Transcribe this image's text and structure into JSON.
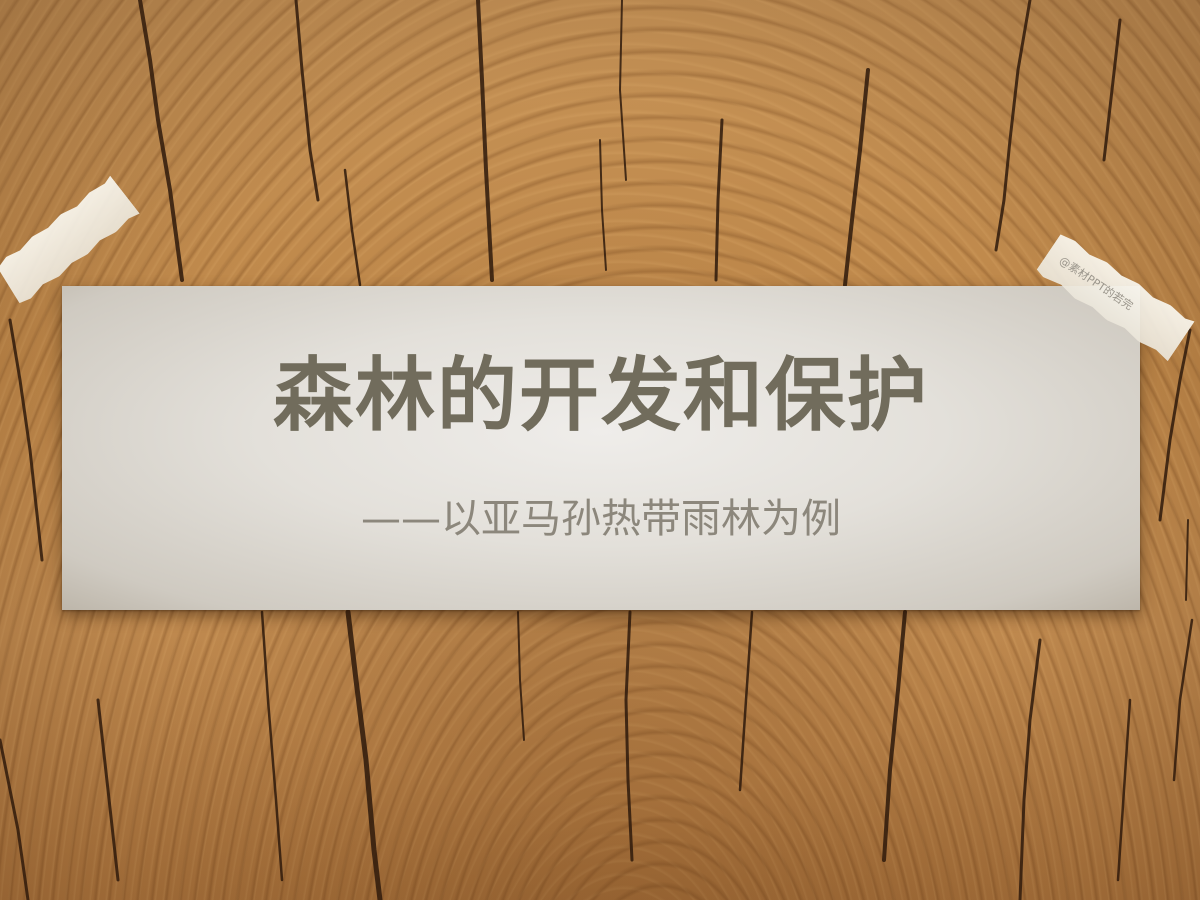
{
  "slide": {
    "title": "森林的开发和保护",
    "subtitle": "——以亚马孙热带雨林为例",
    "watermark": "@素材PPT的若完"
  },
  "colors": {
    "wood": "#c08a4c",
    "paper": "#e3e0da",
    "title_text": "#716c5c",
    "subtitle_text": "#8c877c",
    "tape": "#f3f0e6"
  }
}
